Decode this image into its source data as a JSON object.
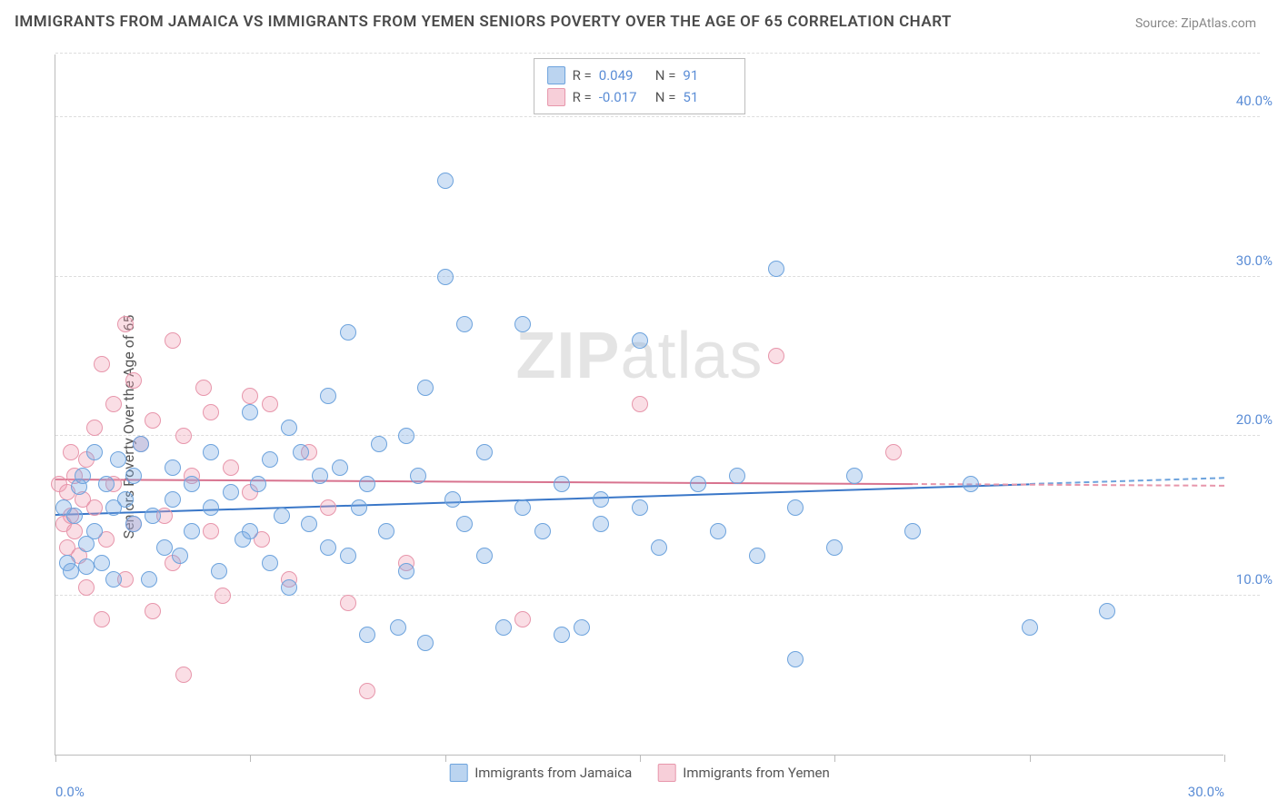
{
  "title": "IMMIGRANTS FROM JAMAICA VS IMMIGRANTS FROM YEMEN SENIORS POVERTY OVER THE AGE OF 65 CORRELATION CHART",
  "source_label": "Source: ",
  "source_name": "ZipAtlas.com",
  "ylabel": "Seniors Poverty Over the Age of 65",
  "watermark_bold": "ZIP",
  "watermark_rest": "atlas",
  "chart": {
    "type": "scatter",
    "xlim": [
      0,
      30
    ],
    "ylim": [
      0,
      44
    ],
    "xticks": [
      0,
      5,
      10,
      15,
      20,
      25,
      30
    ],
    "xtick_labels": {
      "0": "0.0%",
      "30": "30.0%"
    },
    "yticks": [
      10,
      20,
      30,
      40
    ],
    "ytick_labels": {
      "10": "10.0%",
      "20": "20.0%",
      "30": "30.0%",
      "40": "40.0%"
    },
    "background_color": "#ffffff",
    "grid_color": "#dddddd",
    "axis_color": "#bbbbbb",
    "tick_label_color": "#5b8dd6",
    "marker_size": 18,
    "series": [
      {
        "name": "Immigrants from Jamaica",
        "key": "blue",
        "color_fill": "rgba(120,170,225,0.35)",
        "color_stroke": "#6da3dd",
        "trend_color": "#3a77c8",
        "R": "0.049",
        "N": "91",
        "trend": {
          "x0": 0,
          "y0": 15.0,
          "x1": 30,
          "y1": 17.3,
          "solid_until_x": 25
        },
        "points": [
          [
            0.2,
            15.5
          ],
          [
            0.3,
            12.0
          ],
          [
            0.4,
            11.5
          ],
          [
            0.5,
            15.0
          ],
          [
            0.6,
            16.8
          ],
          [
            0.7,
            17.5
          ],
          [
            0.8,
            13.2
          ],
          [
            0.8,
            11.8
          ],
          [
            1.0,
            14.0
          ],
          [
            1.0,
            19.0
          ],
          [
            1.2,
            12.0
          ],
          [
            1.3,
            17.0
          ],
          [
            1.5,
            15.5
          ],
          [
            1.5,
            11.0
          ],
          [
            1.6,
            18.5
          ],
          [
            1.8,
            16.0
          ],
          [
            2.0,
            14.5
          ],
          [
            2.0,
            17.5
          ],
          [
            2.2,
            19.5
          ],
          [
            2.4,
            11.0
          ],
          [
            2.5,
            15.0
          ],
          [
            2.8,
            13.0
          ],
          [
            3.0,
            18.0
          ],
          [
            3.0,
            16.0
          ],
          [
            3.2,
            12.5
          ],
          [
            3.5,
            17.0
          ],
          [
            3.5,
            14.0
          ],
          [
            4.0,
            15.5
          ],
          [
            4.0,
            19.0
          ],
          [
            4.2,
            11.5
          ],
          [
            4.5,
            16.5
          ],
          [
            4.8,
            13.5
          ],
          [
            5.0,
            21.5
          ],
          [
            5.0,
            14.0
          ],
          [
            5.2,
            17.0
          ],
          [
            5.5,
            18.5
          ],
          [
            5.5,
            12.0
          ],
          [
            5.8,
            15.0
          ],
          [
            6.0,
            20.5
          ],
          [
            6.0,
            10.5
          ],
          [
            6.3,
            19.0
          ],
          [
            6.5,
            14.5
          ],
          [
            6.8,
            17.5
          ],
          [
            7.0,
            13.0
          ],
          [
            7.0,
            22.5
          ],
          [
            7.3,
            18.0
          ],
          [
            7.5,
            12.5
          ],
          [
            7.5,
            26.5
          ],
          [
            7.8,
            15.5
          ],
          [
            8.0,
            17.0
          ],
          [
            8.0,
            7.5
          ],
          [
            8.3,
            19.5
          ],
          [
            8.5,
            14.0
          ],
          [
            8.8,
            8.0
          ],
          [
            9.0,
            20.0
          ],
          [
            9.0,
            11.5
          ],
          [
            9.3,
            17.5
          ],
          [
            9.5,
            7.0
          ],
          [
            9.5,
            23.0
          ],
          [
            10.0,
            30.0
          ],
          [
            10.0,
            36.0
          ],
          [
            10.2,
            16.0
          ],
          [
            10.5,
            14.5
          ],
          [
            10.5,
            27.0
          ],
          [
            11.0,
            12.5
          ],
          [
            11.0,
            19.0
          ],
          [
            11.5,
            8.0
          ],
          [
            12.0,
            15.5
          ],
          [
            12.0,
            27.0
          ],
          [
            12.5,
            14.0
          ],
          [
            13.0,
            7.5
          ],
          [
            13.0,
            17.0
          ],
          [
            13.5,
            8.0
          ],
          [
            14.0,
            14.5
          ],
          [
            14.0,
            16.0
          ],
          [
            15.0,
            15.5
          ],
          [
            15.0,
            26.0
          ],
          [
            15.5,
            13.0
          ],
          [
            16.5,
            17.0
          ],
          [
            17.0,
            14.0
          ],
          [
            17.5,
            17.5
          ],
          [
            18.0,
            12.5
          ],
          [
            18.5,
            30.5
          ],
          [
            19.0,
            15.5
          ],
          [
            19.0,
            6.0
          ],
          [
            20.0,
            13.0
          ],
          [
            20.5,
            17.5
          ],
          [
            22.0,
            14.0
          ],
          [
            25.0,
            8.0
          ],
          [
            27.0,
            9.0
          ],
          [
            23.5,
            17.0
          ]
        ]
      },
      {
        "name": "Immigrants from Yemen",
        "key": "pink",
        "color_fill": "rgba(240,160,180,0.35)",
        "color_stroke": "#e796ab",
        "trend_color": "#d8738f",
        "R": "-0.017",
        "N": "51",
        "trend": {
          "x0": 0,
          "y0": 17.2,
          "x1": 30,
          "y1": 16.8,
          "solid_until_x": 22
        },
        "points": [
          [
            0.1,
            17.0
          ],
          [
            0.2,
            14.5
          ],
          [
            0.3,
            16.5
          ],
          [
            0.3,
            13.0
          ],
          [
            0.4,
            19.0
          ],
          [
            0.4,
            15.0
          ],
          [
            0.5,
            14.0
          ],
          [
            0.5,
            17.5
          ],
          [
            0.6,
            12.5
          ],
          [
            0.7,
            16.0
          ],
          [
            0.8,
            18.5
          ],
          [
            0.8,
            10.5
          ],
          [
            1.0,
            20.5
          ],
          [
            1.0,
            15.5
          ],
          [
            1.2,
            24.5
          ],
          [
            1.2,
            8.5
          ],
          [
            1.3,
            13.5
          ],
          [
            1.5,
            22.0
          ],
          [
            1.5,
            17.0
          ],
          [
            1.8,
            27.0
          ],
          [
            1.8,
            11.0
          ],
          [
            2.0,
            23.5
          ],
          [
            2.0,
            14.5
          ],
          [
            2.2,
            19.5
          ],
          [
            2.5,
            21.0
          ],
          [
            2.5,
            9.0
          ],
          [
            2.8,
            15.0
          ],
          [
            3.0,
            26.0
          ],
          [
            3.0,
            12.0
          ],
          [
            3.3,
            20.0
          ],
          [
            3.3,
            5.0
          ],
          [
            3.5,
            17.5
          ],
          [
            3.8,
            23.0
          ],
          [
            4.0,
            14.0
          ],
          [
            4.0,
            21.5
          ],
          [
            4.3,
            10.0
          ],
          [
            4.5,
            18.0
          ],
          [
            5.0,
            22.5
          ],
          [
            5.0,
            16.5
          ],
          [
            5.3,
            13.5
          ],
          [
            5.5,
            22.0
          ],
          [
            6.0,
            11.0
          ],
          [
            6.5,
            19.0
          ],
          [
            7.0,
            15.5
          ],
          [
            7.5,
            9.5
          ],
          [
            8.0,
            4.0
          ],
          [
            9.0,
            12.0
          ],
          [
            12.0,
            8.5
          ],
          [
            15.0,
            22.0
          ],
          [
            18.5,
            25.0
          ],
          [
            21.5,
            19.0
          ]
        ]
      }
    ]
  },
  "legend_stats": {
    "r_label": "R  =",
    "n_label": "N  ="
  },
  "bottom_legend": {
    "series1": "Immigrants from Jamaica",
    "series2": "Immigrants from Yemen"
  }
}
